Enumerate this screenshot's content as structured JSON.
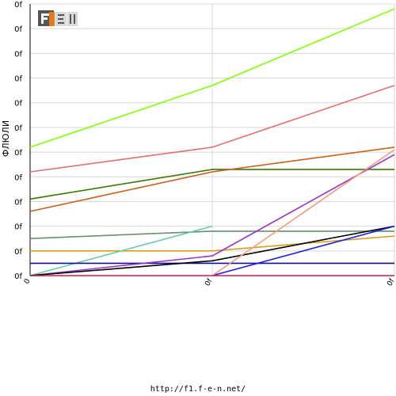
{
  "footer": {
    "url": "http://f1.f-e-n.net/"
  },
  "logo": {
    "text": "F1EN",
    "colors": {
      "dark": "#555555",
      "light": "#d9d9d9",
      "accent": "#e8791a"
    }
  },
  "chart_data": {
    "type": "line",
    "title": "",
    "ylabel": "ФЛЮЛИ",
    "xlabel": "",
    "x_tick_labels": [
      "0",
      "0f",
      "0f"
    ],
    "x": [
      0,
      1,
      2
    ],
    "ylim": [
      0,
      11
    ],
    "y_tick_labels": [
      "0f",
      "0f",
      "0f",
      "0f",
      "0f",
      "0f",
      "0f",
      "0f",
      "0f",
      "0f",
      "0f",
      "0f"
    ],
    "grid": true,
    "series": [
      {
        "color": "#80ff00",
        "values": [
          5.2,
          7.7,
          10.8
        ]
      },
      {
        "color": "#e07070",
        "values": [
          4.2,
          5.2,
          7.7
        ]
      },
      {
        "color": "#3a7a00",
        "values": [
          3.1,
          4.3,
          4.3
        ]
      },
      {
        "color": "#c8601c",
        "values": [
          2.6,
          4.2,
          5.2
        ]
      },
      {
        "color": "#6a8f6a",
        "values": [
          1.5,
          1.8,
          1.8
        ]
      },
      {
        "color": "#d8a020",
        "values": [
          1.0,
          1.0,
          1.6
        ]
      },
      {
        "color": "#66ccaa",
        "values": [
          0.0,
          2.0,
          null
        ]
      },
      {
        "color": "#10109a",
        "values": [
          0.5,
          0.5,
          0.5
        ]
      },
      {
        "color": "#9933cc",
        "values": [
          0.0,
          0.8,
          4.9
        ]
      },
      {
        "color": "#000000",
        "values": [
          0.0,
          0.6,
          2.0
        ]
      },
      {
        "color": "#1a1ae0",
        "values": [
          null,
          0.0,
          2.0
        ]
      },
      {
        "color": "#f09a7a",
        "values": [
          null,
          0.0,
          5.1
        ]
      },
      {
        "color": "#cc1a44",
        "values": [
          0.0,
          0.0,
          0.0
        ]
      }
    ]
  }
}
